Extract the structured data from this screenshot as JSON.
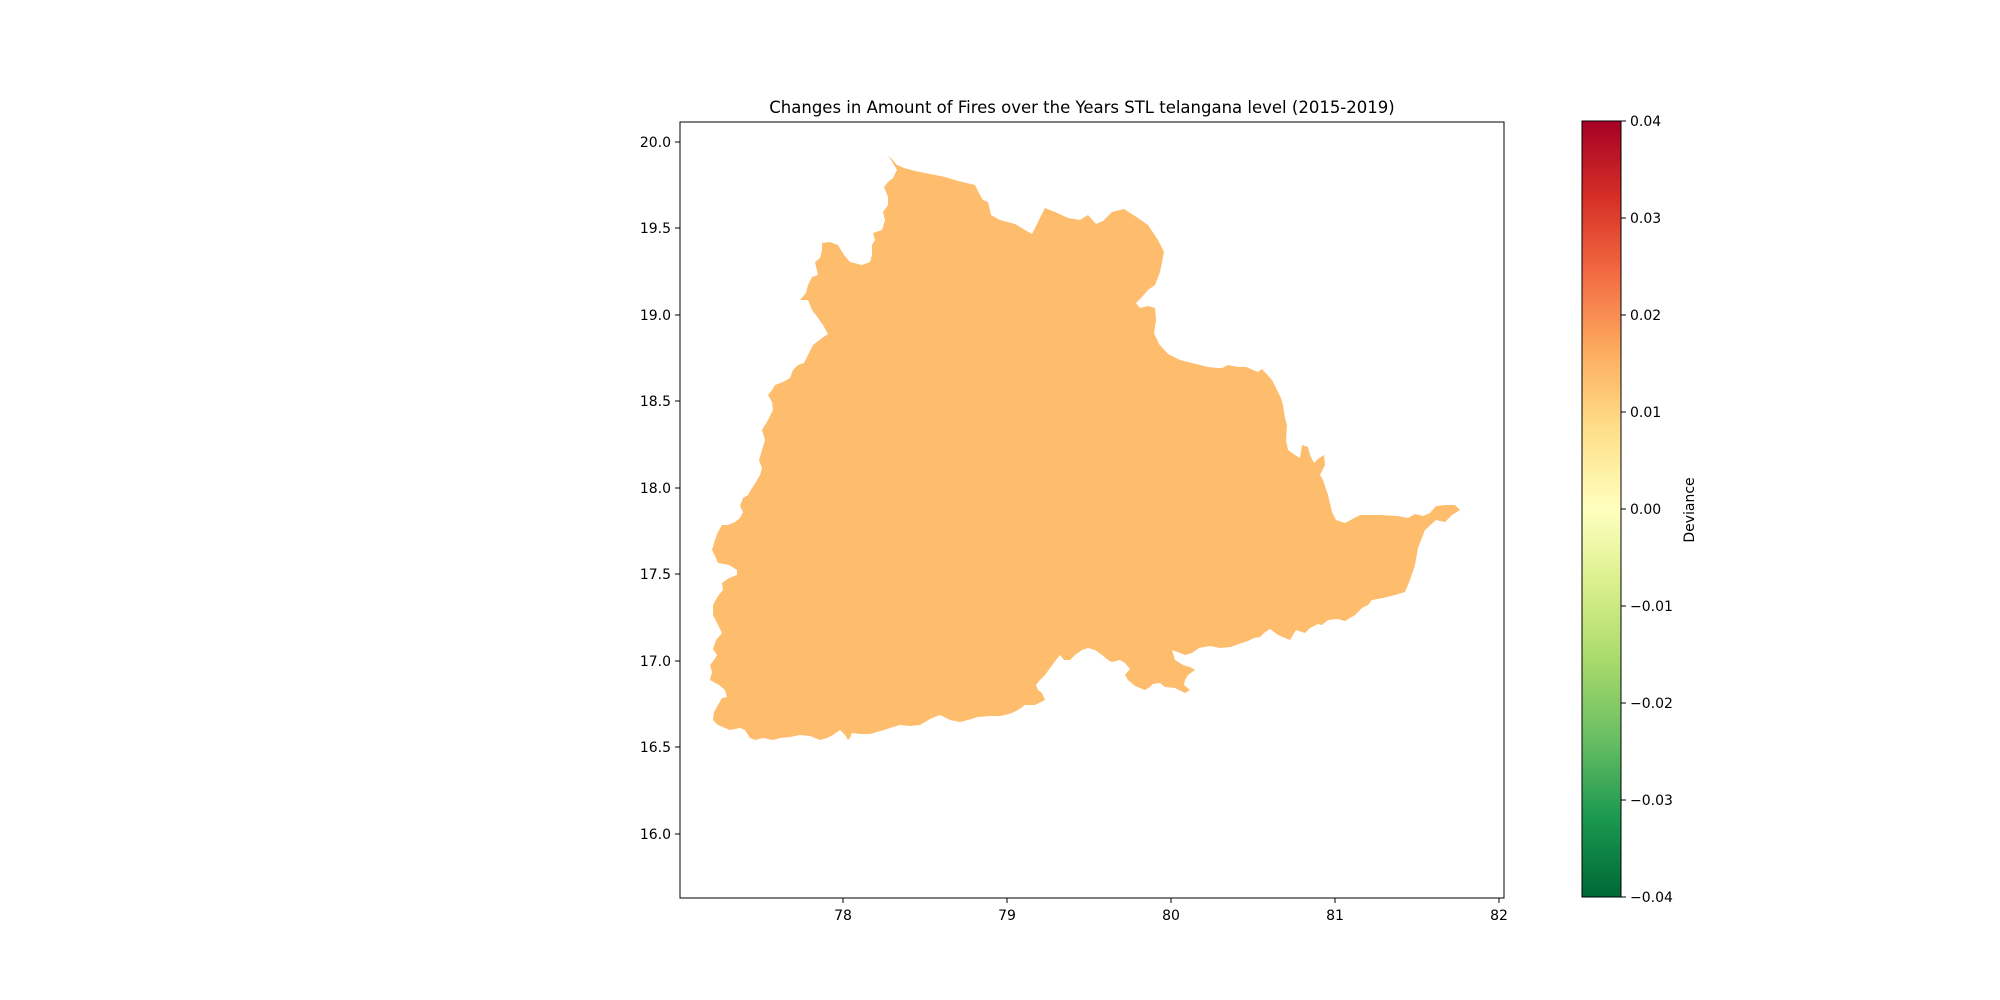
{
  "title": "Changes in Amount of Fires over the Years STL telangana level (2015-2019)",
  "map": {
    "region": "Telangana",
    "fill_color": "#fdbd6d",
    "deviance_value": 0.0125,
    "x_ticks": [
      "78",
      "79",
      "80",
      "81",
      "82"
    ],
    "y_ticks": [
      "20.0",
      "19.5",
      "19.0",
      "18.5",
      "18.0",
      "17.5",
      "17.0",
      "16.5",
      "16.0"
    ]
  },
  "colorbar": {
    "label": "Deviance",
    "colormap": "RdYlGn_r",
    "range": [
      -0.04,
      0.04
    ],
    "colors": [
      "#006837",
      "#1a9850",
      "#66bd63",
      "#a6d96a",
      "#d9ef8b",
      "#ffffbf",
      "#fee08b",
      "#fdae61",
      "#f46d43",
      "#d73027",
      "#a50026"
    ],
    "ticks": [
      "0.04",
      "0.03",
      "0.02",
      "0.01",
      "0.00",
      "−0.01",
      "−0.02",
      "−0.03",
      "−0.04"
    ]
  }
}
